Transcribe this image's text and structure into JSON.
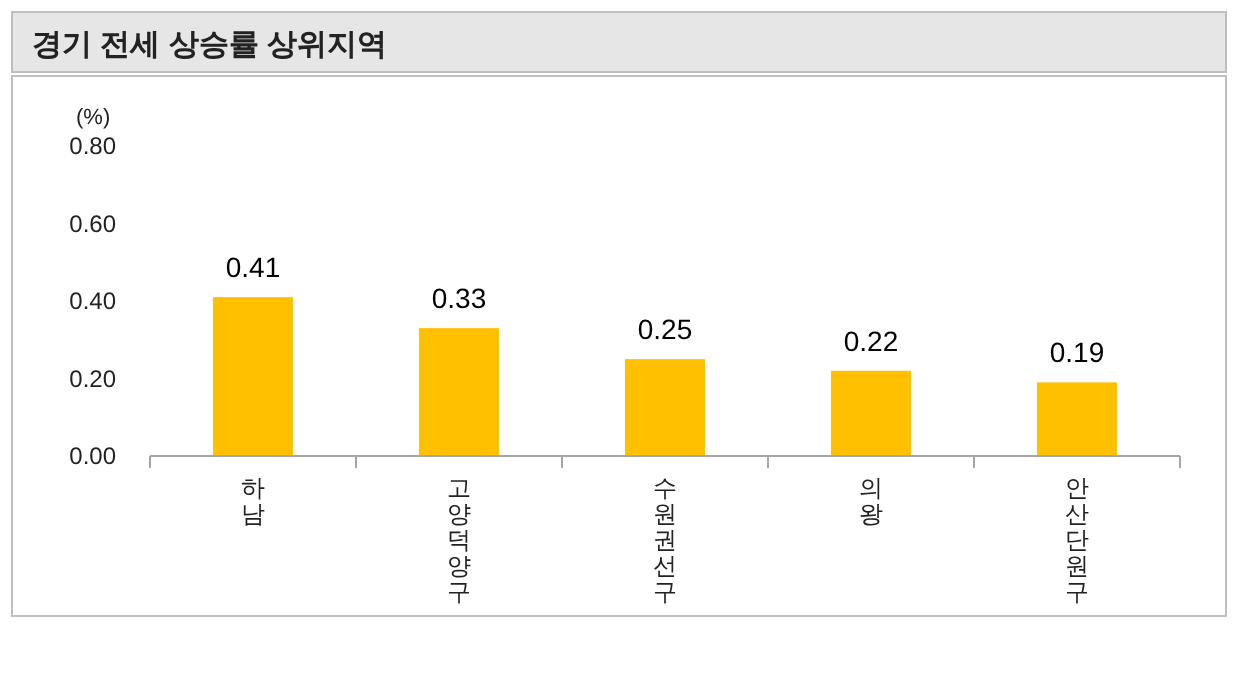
{
  "chart_data": {
    "type": "bar",
    "title": "경기 전세 상승률 상위지역",
    "ylabel": "(%)",
    "categories": [
      "하남",
      "고양덕양구",
      "수원권선구",
      "의왕",
      "안산단원구"
    ],
    "values": [
      0.41,
      0.33,
      0.25,
      0.22,
      0.19
    ],
    "color": "#ffc000",
    "ylim": [
      0,
      0.8
    ],
    "yticks": [
      {
        "value": 0,
        "label": "0.00"
      },
      {
        "value": 0.2,
        "label": "0.20"
      },
      {
        "value": 0.4,
        "label": "0.40"
      },
      {
        "value": 0.6,
        "label": "0.60"
      },
      {
        "value": 0.8,
        "label": "0.80"
      }
    ],
    "data_labels": true,
    "grid": false
  }
}
